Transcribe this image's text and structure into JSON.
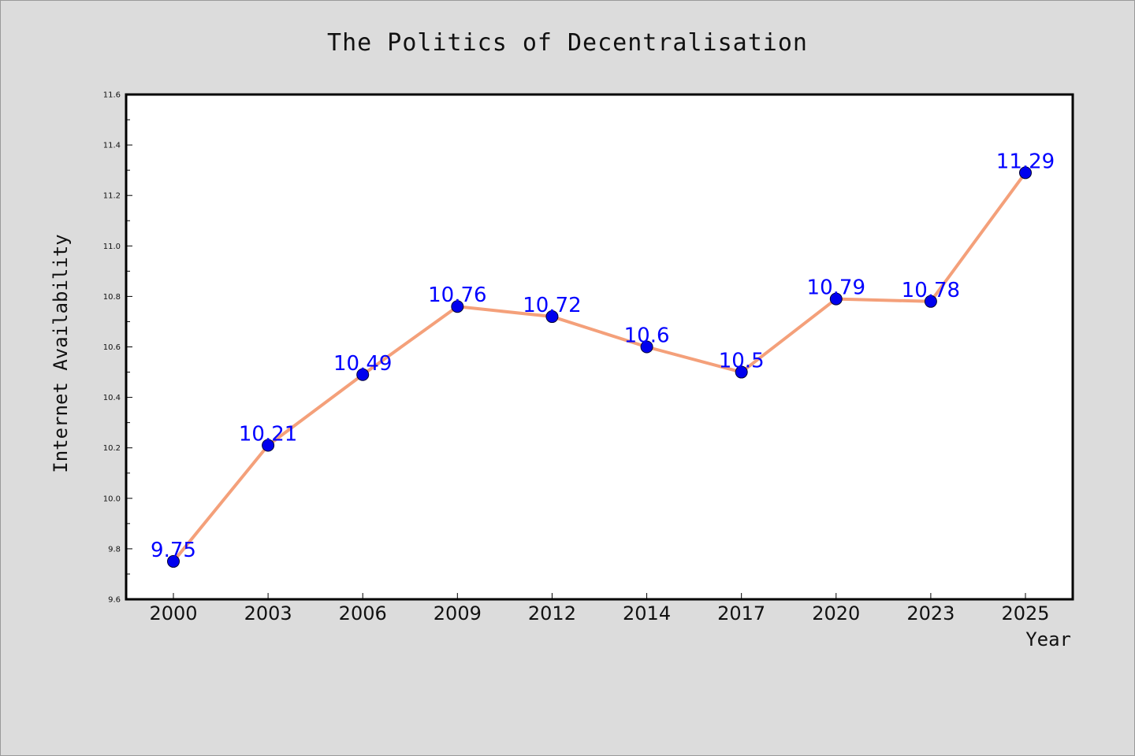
{
  "chart_data": {
    "type": "line",
    "title": "The Politics of Decentralisation",
    "xlabel": "Year",
    "ylabel": "Internet Availability",
    "categories": [
      "2000",
      "2003",
      "2006",
      "2009",
      "2012",
      "2014",
      "2017",
      "2020",
      "2023",
      "2025"
    ],
    "series": [
      {
        "values": [
          9.75,
          10.21,
          10.49,
          10.76,
          10.72,
          10.6,
          10.5,
          10.79,
          10.78,
          11.29
        ],
        "data_labels": [
          "9.75",
          "10.21",
          "10.49",
          "10.76",
          "10.72",
          "10.6",
          "10.5",
          "10.79",
          "10.78",
          "11.29"
        ]
      }
    ],
    "ylim": [
      9.6,
      11.6
    ],
    "yticks": [
      "9.6",
      "9.8",
      "10.0",
      "10.2",
      "10.4",
      "10.6",
      "10.8",
      "11.0",
      "11.2",
      "11.4",
      "11.6"
    ],
    "grid": false,
    "legend": "none",
    "colors": {
      "line": "#f4a07a",
      "marker": "#0000ee",
      "label": "#0000ff",
      "background": "#dcdcdc",
      "plot_background": "#ffffff"
    }
  }
}
